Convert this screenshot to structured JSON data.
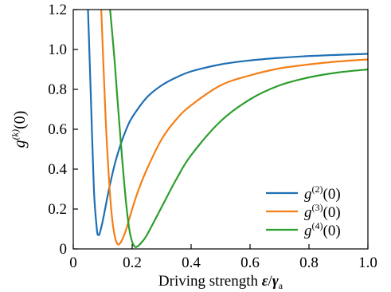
{
  "chart_data": {
    "type": "line",
    "xlabel": "Driving strength ε/γa",
    "xlabel_parts": {
      "text": "Driving strength ",
      "symbol": "ε",
      "slash": "/",
      "gamma": "γ",
      "sub": "a"
    },
    "ylabel": "g(k)(0)",
    "ylabel_parts": {
      "base": "g",
      "sup": "(k)",
      "arg": "(0)"
    },
    "xlim": [
      0,
      1.0
    ],
    "ylim": [
      0,
      1.2
    ],
    "xticks": [
      0,
      0.2,
      0.4,
      0.6,
      0.8,
      1.0
    ],
    "xtick_labels": [
      "0",
      "0.2",
      "0.4",
      "0.6",
      "0.8",
      "1.0"
    ],
    "yticks": [
      0,
      0.2,
      0.4,
      0.6,
      0.8,
      1.0,
      1.2
    ],
    "ytick_labels": [
      "0",
      "0.2",
      "0.4",
      "0.6",
      "0.8",
      "1.0",
      "1.2"
    ],
    "grid": false,
    "legend_position": "bottom-right",
    "series": [
      {
        "name": "g(2)(0)",
        "name_parts": {
          "base": "g",
          "sup": "(2)",
          "arg": "(0)"
        },
        "color": "#1f6fb4",
        "x": [
          0.05,
          0.06,
          0.07,
          0.08,
          0.085,
          0.09,
          0.1,
          0.12,
          0.14,
          0.16,
          0.18,
          0.2,
          0.25,
          0.3,
          0.35,
          0.4,
          0.5,
          0.6,
          0.7,
          0.8,
          0.9,
          1.0
        ],
        "y": [
          1.2,
          0.75,
          0.3,
          0.1,
          0.07,
          0.08,
          0.14,
          0.29,
          0.42,
          0.52,
          0.6,
          0.66,
          0.76,
          0.82,
          0.86,
          0.89,
          0.925,
          0.945,
          0.958,
          0.967,
          0.973,
          0.978
        ]
      },
      {
        "name": "g(3)(0)",
        "name_parts": {
          "base": "g",
          "sup": "(3)",
          "arg": "(0)"
        },
        "color": "#f57f17",
        "x": [
          0.095,
          0.11,
          0.12,
          0.13,
          0.14,
          0.15,
          0.16,
          0.17,
          0.18,
          0.2,
          0.22,
          0.25,
          0.3,
          0.35,
          0.4,
          0.5,
          0.6,
          0.7,
          0.8,
          0.9,
          1.0
        ],
        "y": [
          1.2,
          0.65,
          0.38,
          0.18,
          0.07,
          0.025,
          0.03,
          0.06,
          0.1,
          0.2,
          0.29,
          0.4,
          0.55,
          0.65,
          0.72,
          0.82,
          0.87,
          0.905,
          0.925,
          0.94,
          0.95
        ]
      },
      {
        "name": "g(4)(0)",
        "name_parts": {
          "base": "g",
          "sup": "(4)",
          "arg": "(0)"
        },
        "color": "#2c9e2c",
        "x": [
          0.125,
          0.14,
          0.15,
          0.16,
          0.17,
          0.18,
          0.19,
          0.2,
          0.21,
          0.22,
          0.23,
          0.25,
          0.3,
          0.35,
          0.4,
          0.5,
          0.6,
          0.7,
          0.8,
          0.9,
          1.0
        ],
        "y": [
          1.2,
          0.95,
          0.75,
          0.56,
          0.38,
          0.22,
          0.1,
          0.035,
          0.01,
          0.015,
          0.03,
          0.07,
          0.21,
          0.35,
          0.47,
          0.64,
          0.75,
          0.82,
          0.86,
          0.885,
          0.9
        ]
      }
    ]
  }
}
